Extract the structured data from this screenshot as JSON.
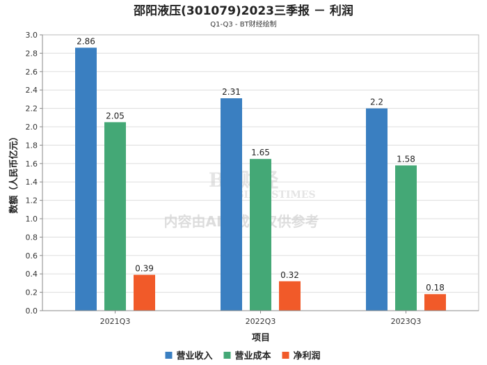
{
  "chart_data": {
    "type": "bar",
    "title": "邵阳液压(301079)2023三季报 － 利润",
    "subtitle": "Q1-Q3 - BT财经绘制",
    "xlabel": "项目",
    "ylabel": "数额（人民币亿元）",
    "ylim": [
      0,
      3.0
    ],
    "ytick_step": 0.2,
    "grid": true,
    "legend_position": "bottom",
    "categories": [
      "2021Q3",
      "2022Q3",
      "2023Q3"
    ],
    "series": [
      {
        "name": "营业收入",
        "color": "#3a7fc1",
        "values": [
          2.86,
          2.31,
          2.2
        ],
        "labels": [
          "2.86",
          "2.31",
          "2.2"
        ]
      },
      {
        "name": "营业成本",
        "color": "#44a876",
        "values": [
          2.05,
          1.65,
          1.58
        ],
        "labels": [
          "2.05",
          "1.65",
          "1.58"
        ]
      },
      {
        "name": "净利润",
        "color": "#f15a29",
        "values": [
          0.39,
          0.32,
          0.18
        ],
        "labels": [
          "0.39",
          "0.32",
          "0.18"
        ]
      }
    ]
  },
  "watermark": {
    "brand": "BT财经",
    "brand_en": "BUSINESSTIMES",
    "note": "内容由AI生成，仅供参考"
  }
}
